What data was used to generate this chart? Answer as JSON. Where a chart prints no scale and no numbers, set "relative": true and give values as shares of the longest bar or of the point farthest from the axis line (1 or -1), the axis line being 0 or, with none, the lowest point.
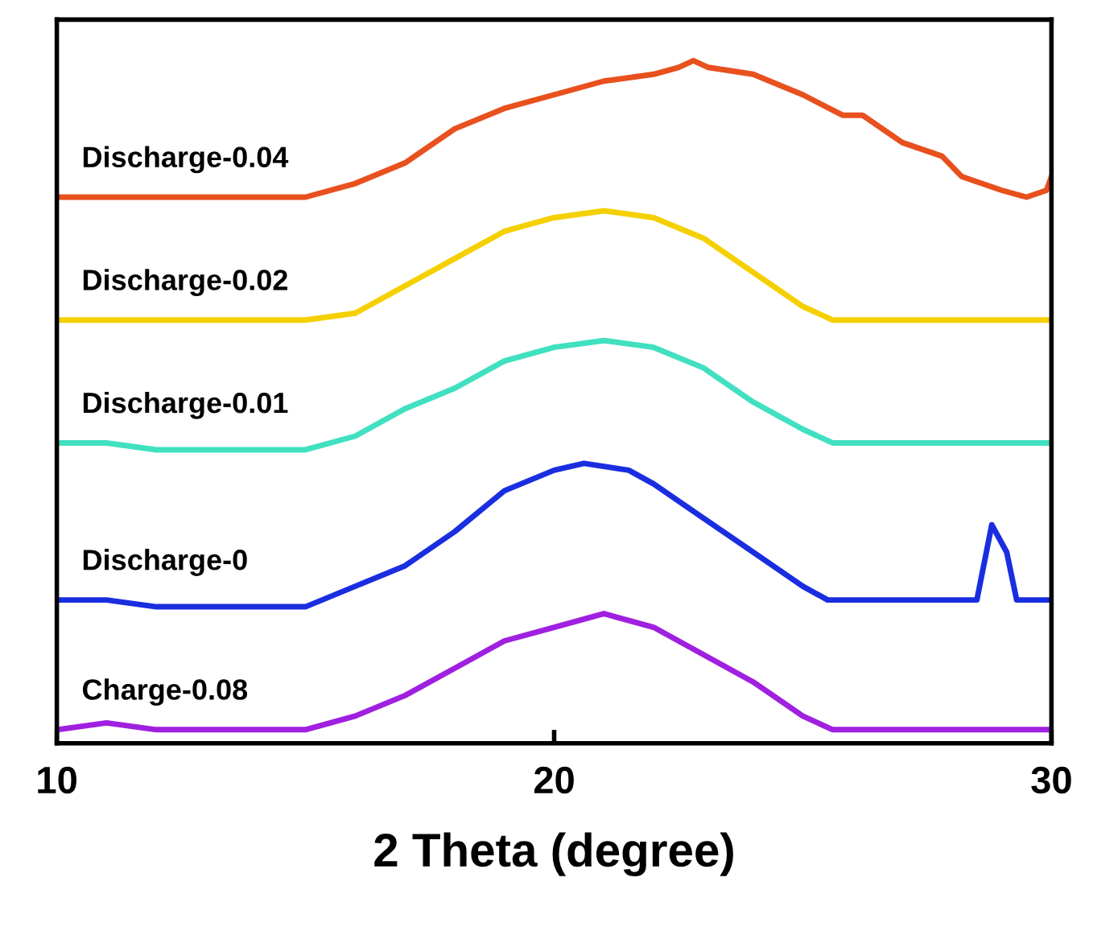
{
  "chart_data": {
    "type": "line",
    "relative": true,
    "xlabel": "2 Theta (degree)",
    "xlim": [
      10,
      30
    ],
    "xticks": [
      10,
      20,
      30
    ],
    "legend": false,
    "grid": false,
    "line_style": "solid",
    "marker": "none",
    "series": [
      {
        "name": "Discharge-0.04",
        "color": "#e8501e",
        "x": [
          10,
          15,
          16,
          17,
          18,
          19,
          20,
          21,
          22,
          22.5,
          22.8,
          23.1,
          24,
          25,
          25.8,
          26.2,
          27,
          27.8,
          28.2,
          29,
          29.5,
          29.9,
          30
        ],
        "values": [
          0.8,
          0.8,
          0.82,
          0.85,
          0.9,
          0.93,
          0.95,
          0.97,
          0.98,
          0.99,
          1.0,
          0.99,
          0.98,
          0.95,
          0.92,
          0.92,
          0.88,
          0.86,
          0.83,
          0.81,
          0.8,
          0.81,
          0.83
        ]
      },
      {
        "name": "Discharge-0.02",
        "color": "#f5d000",
        "x": [
          10,
          11,
          12,
          15,
          16,
          17,
          18,
          19,
          20,
          21,
          22,
          23,
          24,
          25,
          25.6,
          30
        ],
        "values": [
          0.62,
          0.62,
          0.62,
          0.62,
          0.63,
          0.67,
          0.71,
          0.75,
          0.77,
          0.78,
          0.77,
          0.74,
          0.69,
          0.64,
          0.62,
          0.62
        ]
      },
      {
        "name": "Discharge-0.01",
        "color": "#40e0c0",
        "x": [
          10,
          11,
          12,
          15,
          16,
          17,
          18,
          19,
          20,
          21,
          22,
          23,
          24,
          25,
          25.6,
          30
        ],
        "values": [
          0.44,
          0.44,
          0.43,
          0.43,
          0.45,
          0.49,
          0.52,
          0.56,
          0.58,
          0.59,
          0.58,
          0.55,
          0.5,
          0.46,
          0.44,
          0.44
        ]
      },
      {
        "name": "Discharge-0",
        "color": "#1a2ee0",
        "x": [
          10,
          11,
          12,
          15,
          16,
          17,
          18,
          19,
          20,
          20.6,
          21.5,
          22,
          23,
          24,
          25,
          25.5,
          28.5,
          28.8,
          29.1,
          29.3,
          30
        ],
        "values": [
          0.21,
          0.21,
          0.2,
          0.2,
          0.23,
          0.26,
          0.31,
          0.37,
          0.4,
          0.41,
          0.4,
          0.38,
          0.33,
          0.28,
          0.23,
          0.21,
          0.21,
          0.32,
          0.28,
          0.21,
          0.21
        ]
      },
      {
        "name": "Charge-0.08",
        "color": "#a020e0",
        "x": [
          10,
          11,
          12,
          15,
          16,
          17,
          18,
          19,
          20,
          21,
          22,
          23,
          24,
          25,
          25.6,
          30
        ],
        "values": [
          0.02,
          0.03,
          0.02,
          0.02,
          0.04,
          0.07,
          0.11,
          0.15,
          0.17,
          0.19,
          0.17,
          0.13,
          0.09,
          0.04,
          0.02,
          0.02
        ]
      }
    ]
  }
}
